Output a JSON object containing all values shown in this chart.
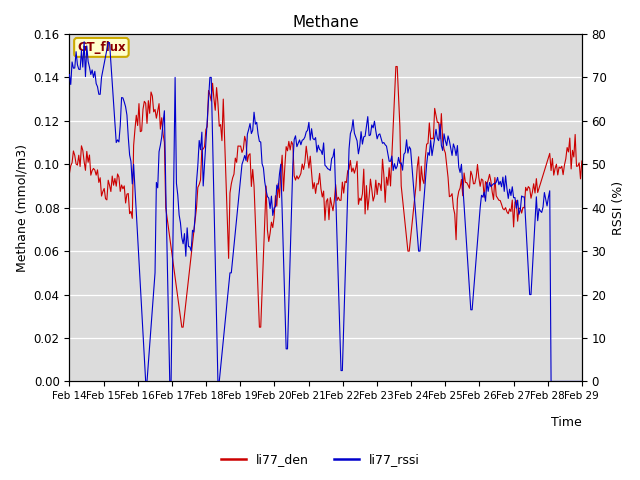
{
  "title": "Methane",
  "xlabel": "Time",
  "ylabel_left": "Methane (mmol/m3)",
  "ylabel_right": "RSSI (%)",
  "ylim_left": [
    0,
    0.16
  ],
  "ylim_right": [
    0,
    80
  ],
  "xlim": [
    0,
    360
  ],
  "bg_color": "#dcdcdc",
  "fig_color": "#ffffff",
  "line1_color": "#cc0000",
  "line2_color": "#0000cc",
  "line1_label": "li77_den",
  "line2_label": "li77_rssi",
  "annotation_text": "GT_flux",
  "annotation_bg": "#ffffcc",
  "annotation_border": "#ccaa00",
  "xtick_labels": [
    "Feb 14",
    "Feb 15",
    "Feb 16",
    "Feb 17",
    "Feb 18",
    "Feb 19",
    "Feb 20",
    "Feb 21",
    "Feb 22",
    "Feb 23",
    "Feb 24",
    "Feb 25",
    "Feb 26",
    "Feb 27",
    "Feb 28",
    "Feb 29"
  ],
  "xtick_positions": [
    0,
    24,
    48,
    72,
    96,
    120,
    144,
    168,
    192,
    216,
    240,
    264,
    288,
    312,
    336,
    360
  ],
  "yticks_left": [
    0.0,
    0.02,
    0.04,
    0.06,
    0.08,
    0.1,
    0.12,
    0.14,
    0.16
  ],
  "yticks_right": [
    0,
    10,
    20,
    30,
    40,
    50,
    60,
    70,
    80
  ]
}
